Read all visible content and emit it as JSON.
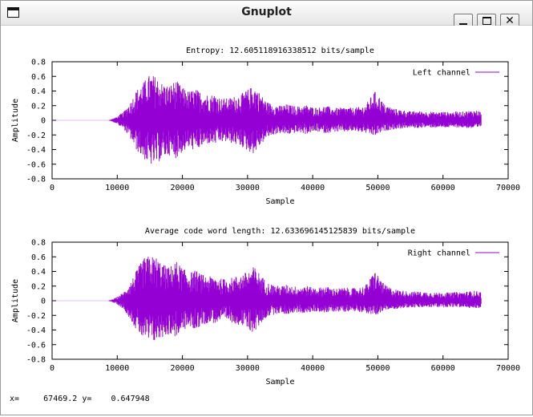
{
  "window": {
    "title": "Gnuplot",
    "controls": {
      "minimize": "_",
      "maximize": "□",
      "close": "✕"
    },
    "icon": "window-icon"
  },
  "status": {
    "x_label": "x=",
    "x_value": "67469.2",
    "y_label": "y=",
    "y_value": "0.647948"
  },
  "chart_data": [
    {
      "type": "line",
      "title": "Entropy: 12.605118916338512 bits/sample",
      "xlabel": "Sample",
      "ylabel": "Amplitude",
      "xlim": [
        0,
        70000
      ],
      "ylim": [
        -0.8,
        0.8
      ],
      "x_ticks": [
        "0",
        "10000",
        "20000",
        "30000",
        "40000",
        "50000",
        "60000",
        "70000"
      ],
      "y_ticks": [
        "0.8",
        "0.6",
        "0.4",
        "0.2",
        "0",
        "-0.2",
        "-0.4",
        "-0.6",
        "-0.8"
      ],
      "legend_position": "top-right",
      "series": [
        {
          "name": "Left channel",
          "color": "#9400d3",
          "envelope": {
            "x": [
              0,
              8500,
              9000,
              10000,
              11000,
              12000,
              13000,
              14000,
              15000,
              16000,
              17000,
              18000,
              19000,
              20000,
              21000,
              22000,
              23000,
              24000,
              25000,
              26000,
              27000,
              28000,
              29000,
              30000,
              31000,
              32000,
              33000,
              34000,
              35000,
              36000,
              37000,
              38000,
              39000,
              40000,
              41000,
              42000,
              43000,
              44000,
              45000,
              46000,
              47000,
              48000,
              48800,
              49500,
              50200,
              51000,
              52000,
              53000,
              54000,
              55000,
              56000,
              57000,
              58000,
              59000,
              60000,
              61000,
              62000,
              63000,
              64000,
              65000,
              65900
            ],
            "upper": [
              0,
              0,
              0.01,
              0.05,
              0.12,
              0.25,
              0.42,
              0.52,
              0.63,
              0.6,
              0.5,
              0.48,
              0.55,
              0.45,
              0.4,
              0.43,
              0.38,
              0.35,
              0.36,
              0.3,
              0.3,
              0.33,
              0.36,
              0.42,
              0.48,
              0.36,
              0.25,
              0.22,
              0.2,
              0.22,
              0.2,
              0.19,
              0.21,
              0.18,
              0.18,
              0.2,
              0.17,
              0.17,
              0.18,
              0.17,
              0.18,
              0.2,
              0.3,
              0.4,
              0.33,
              0.22,
              0.18,
              0.15,
              0.14,
              0.12,
              0.13,
              0.12,
              0.12,
              0.11,
              0.12,
              0.11,
              0.12,
              0.12,
              0.13,
              0.14,
              0.12
            ],
            "lower": [
              0,
              0,
              -0.01,
              -0.05,
              -0.12,
              -0.25,
              -0.42,
              -0.52,
              -0.62,
              -0.6,
              -0.52,
              -0.48,
              -0.52,
              -0.44,
              -0.38,
              -0.42,
              -0.36,
              -0.32,
              -0.33,
              -0.3,
              -0.3,
              -0.33,
              -0.36,
              -0.42,
              -0.46,
              -0.34,
              -0.24,
              -0.2,
              -0.18,
              -0.2,
              -0.18,
              -0.17,
              -0.19,
              -0.16,
              -0.16,
              -0.18,
              -0.16,
              -0.16,
              -0.16,
              -0.15,
              -0.16,
              -0.17,
              -0.2,
              -0.22,
              -0.18,
              -0.15,
              -0.13,
              -0.12,
              -0.11,
              -0.1,
              -0.11,
              -0.1,
              -0.1,
              -0.1,
              -0.1,
              -0.1,
              -0.1,
              -0.1,
              -0.11,
              -0.12,
              -0.1
            ]
          }
        }
      ]
    },
    {
      "type": "line",
      "title": "Average code word length: 12.633696145125839 bits/sample",
      "xlabel": "Sample",
      "ylabel": "Amplitude",
      "xlim": [
        0,
        70000
      ],
      "ylim": [
        -0.8,
        0.8
      ],
      "x_ticks": [
        "0",
        "10000",
        "20000",
        "30000",
        "40000",
        "50000",
        "60000",
        "70000"
      ],
      "y_ticks": [
        "0.8",
        "0.6",
        "0.4",
        "0.2",
        "0",
        "-0.2",
        "-0.4",
        "-0.6",
        "-0.8"
      ],
      "legend_position": "top-right",
      "series": [
        {
          "name": "Right channel",
          "color": "#9400d3",
          "envelope": {
            "x": [
              0,
              8500,
              9000,
              10000,
              11000,
              12000,
              13000,
              14000,
              15000,
              16000,
              17000,
              18000,
              19000,
              20000,
              21000,
              22000,
              23000,
              24000,
              25000,
              26000,
              27000,
              28000,
              29000,
              30000,
              31000,
              32000,
              33000,
              34000,
              35000,
              36000,
              37000,
              38000,
              39000,
              40000,
              41000,
              42000,
              43000,
              44000,
              45000,
              46000,
              47000,
              48000,
              48800,
              49500,
              50200,
              51000,
              52000,
              53000,
              54000,
              55000,
              56000,
              57000,
              58000,
              59000,
              60000,
              61000,
              62000,
              63000,
              64000,
              65000,
              65900
            ],
            "upper": [
              0,
              0,
              0.01,
              0.05,
              0.12,
              0.25,
              0.42,
              0.58,
              0.62,
              0.6,
              0.5,
              0.46,
              0.55,
              0.45,
              0.38,
              0.42,
              0.36,
              0.33,
              0.34,
              0.3,
              0.3,
              0.33,
              0.36,
              0.4,
              0.47,
              0.36,
              0.25,
              0.22,
              0.2,
              0.22,
              0.2,
              0.19,
              0.21,
              0.18,
              0.18,
              0.2,
              0.17,
              0.17,
              0.18,
              0.17,
              0.18,
              0.2,
              0.3,
              0.42,
              0.33,
              0.22,
              0.18,
              0.15,
              0.14,
              0.12,
              0.13,
              0.12,
              0.12,
              0.11,
              0.12,
              0.11,
              0.12,
              0.12,
              0.13,
              0.14,
              0.12
            ],
            "lower": [
              0,
              0,
              -0.01,
              -0.05,
              -0.12,
              -0.25,
              -0.42,
              -0.52,
              -0.58,
              -0.56,
              -0.5,
              -0.46,
              -0.5,
              -0.42,
              -0.36,
              -0.4,
              -0.34,
              -0.3,
              -0.31,
              -0.28,
              -0.28,
              -0.31,
              -0.34,
              -0.4,
              -0.44,
              -0.32,
              -0.22,
              -0.19,
              -0.17,
              -0.19,
              -0.17,
              -0.16,
              -0.18,
              -0.15,
              -0.15,
              -0.17,
              -0.15,
              -0.15,
              -0.15,
              -0.14,
              -0.15,
              -0.16,
              -0.19,
              -0.21,
              -0.17,
              -0.14,
              -0.12,
              -0.11,
              -0.1,
              -0.09,
              -0.1,
              -0.09,
              -0.09,
              -0.09,
              -0.09,
              -0.09,
              -0.09,
              -0.09,
              -0.1,
              -0.11,
              -0.09
            ]
          }
        }
      ]
    }
  ]
}
